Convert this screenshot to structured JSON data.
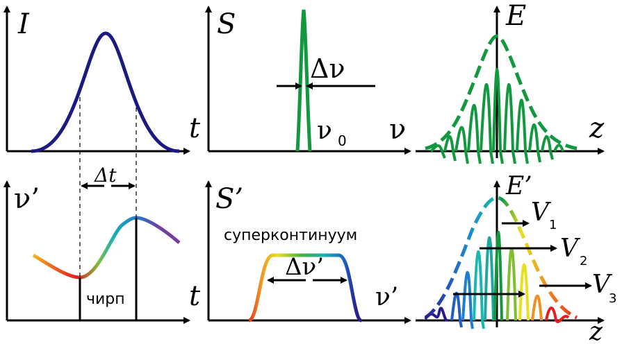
{
  "panels": {
    "intensity": {
      "y_label": "I",
      "x_label": "t",
      "width_label": "Δt"
    },
    "spectrum": {
      "y_label": "S",
      "x_label": "ν",
      "width_label": "Δν",
      "center_label": "ν",
      "center_subscript": "0"
    },
    "field": {
      "y_label": "E",
      "x_label": "z"
    },
    "chirp": {
      "y_label": "ν’",
      "x_label": "t",
      "annotation": "чирп"
    },
    "broad_spectrum": {
      "y_label": "S’",
      "x_label": "ν’",
      "width_label": "Δν’",
      "annotation": "суперконтинуум"
    },
    "chirped_field": {
      "y_label": "E’",
      "x_label": "z",
      "velocities": [
        {
          "label": "V",
          "subscript": "1"
        },
        {
          "label": "V",
          "subscript": "2"
        },
        {
          "label": "V",
          "subscript": "3"
        }
      ]
    }
  },
  "colors": {
    "pulse": "#1a1a80",
    "green": "#129940",
    "rainbow": [
      "#2a1a90",
      "#1e7fd0",
      "#18b8b0",
      "#2aa040",
      "#e6e020",
      "#f09020",
      "#e02020"
    ]
  }
}
